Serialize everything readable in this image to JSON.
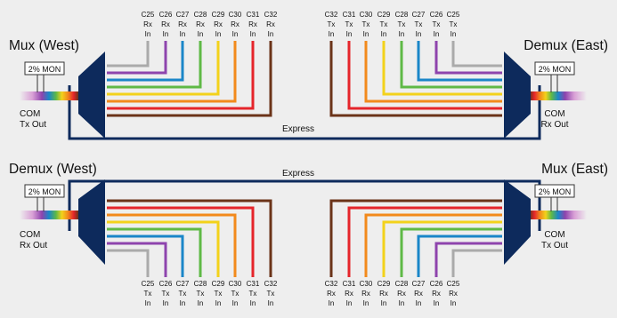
{
  "colors": {
    "background": "#eeeeee",
    "unit": "#0d2a5c",
    "express": "#0d2a5c",
    "channels": [
      "#aaaaaa",
      "#8e44ad",
      "#1a86c8",
      "#5fb946",
      "#f3d21b",
      "#f28a1c",
      "#e5252b",
      "#6b3318"
    ]
  },
  "icons": [
    "mux-trapezoid-icon",
    "demux-trapezoid-icon",
    "rainbow-fiber-icon"
  ],
  "express_label": "Express",
  "top": {
    "left_title": "Mux (West)",
    "right_title": "Demux (East)",
    "left_mon": "2% MON",
    "right_mon": "2% MON",
    "left_port": [
      "COM",
      "Tx Out"
    ],
    "right_port": [
      "COM",
      "Rx Out"
    ],
    "left_channels": [
      {
        "ch": "C25",
        "dir": "Rx",
        "io": "In"
      },
      {
        "ch": "C26",
        "dir": "Rx",
        "io": "In"
      },
      {
        "ch": "C27",
        "dir": "Rx",
        "io": "In"
      },
      {
        "ch": "C28",
        "dir": "Rx",
        "io": "In"
      },
      {
        "ch": "C29",
        "dir": "Rx",
        "io": "In"
      },
      {
        "ch": "C30",
        "dir": "Rx",
        "io": "In"
      },
      {
        "ch": "C31",
        "dir": "Rx",
        "io": "In"
      },
      {
        "ch": "C32",
        "dir": "Rx",
        "io": "In"
      }
    ],
    "right_channels": [
      {
        "ch": "C32",
        "dir": "Tx",
        "io": "In"
      },
      {
        "ch": "C31",
        "dir": "Tx",
        "io": "In"
      },
      {
        "ch": "C30",
        "dir": "Tx",
        "io": "In"
      },
      {
        "ch": "C29",
        "dir": "Tx",
        "io": "In"
      },
      {
        "ch": "C28",
        "dir": "Tx",
        "io": "In"
      },
      {
        "ch": "C27",
        "dir": "Tx",
        "io": "In"
      },
      {
        "ch": "C26",
        "dir": "Tx",
        "io": "In"
      },
      {
        "ch": "C25",
        "dir": "Tx",
        "io": "In"
      }
    ]
  },
  "bottom": {
    "left_title": "Demux (West)",
    "right_title": "Mux (East)",
    "left_mon": "2% MON",
    "right_mon": "2% MON",
    "left_port": [
      "COM",
      "Rx Out"
    ],
    "right_port": [
      "COM",
      "Tx Out"
    ],
    "left_channels": [
      {
        "ch": "C25",
        "dir": "Tx",
        "io": "In"
      },
      {
        "ch": "C26",
        "dir": "Tx",
        "io": "In"
      },
      {
        "ch": "C27",
        "dir": "Tx",
        "io": "In"
      },
      {
        "ch": "C28",
        "dir": "Tx",
        "io": "In"
      },
      {
        "ch": "C29",
        "dir": "Tx",
        "io": "In"
      },
      {
        "ch": "C30",
        "dir": "Tx",
        "io": "In"
      },
      {
        "ch": "C31",
        "dir": "Tx",
        "io": "In"
      },
      {
        "ch": "C32",
        "dir": "Tx",
        "io": "In"
      }
    ],
    "right_channels": [
      {
        "ch": "C32",
        "dir": "Rx",
        "io": "In"
      },
      {
        "ch": "C31",
        "dir": "Rx",
        "io": "In"
      },
      {
        "ch": "C30",
        "dir": "Rx",
        "io": "In"
      },
      {
        "ch": "C29",
        "dir": "Rx",
        "io": "In"
      },
      {
        "ch": "C28",
        "dir": "Rx",
        "io": "In"
      },
      {
        "ch": "C27",
        "dir": "Rx",
        "io": "In"
      },
      {
        "ch": "C26",
        "dir": "Rx",
        "io": "In"
      },
      {
        "ch": "C25",
        "dir": "Rx",
        "io": "In"
      }
    ]
  }
}
